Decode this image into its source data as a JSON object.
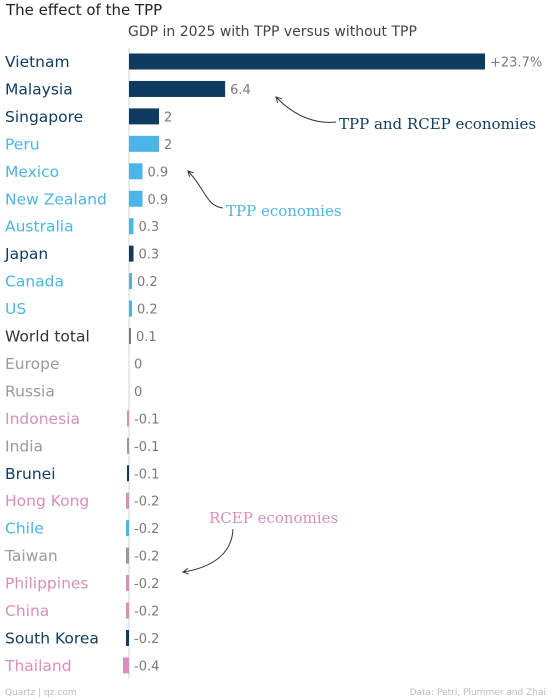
{
  "chart_data": {
    "type": "bar",
    "orientation": "horizontal",
    "title": "The effect of the TPP",
    "subtitle": "GDP in 2025 with TPP versus without TPP",
    "categories": [
      "Vietnam",
      "Malaysia",
      "Singapore",
      "Peru",
      "Mexico",
      "New Zealand",
      "Australia",
      "Japan",
      "Canada",
      "US",
      "World total",
      "Europe",
      "Russia",
      "Indonesia",
      "India",
      "Brunei",
      "Hong Kong",
      "Chile",
      "Taiwan",
      "Philippines",
      "China",
      "South Korea",
      "Thailand"
    ],
    "values": [
      23.7,
      6.4,
      2,
      2,
      0.9,
      0.9,
      0.3,
      0.3,
      0.2,
      0.2,
      0.1,
      0,
      0,
      -0.1,
      -0.1,
      -0.1,
      -0.2,
      -0.2,
      -0.2,
      -0.2,
      -0.2,
      -0.2,
      -0.4
    ],
    "value_labels": [
      "+23.7%",
      "6.4",
      "2",
      "2",
      "0.9",
      "0.9",
      "0.3",
      "0.3",
      "0.2",
      "0.2",
      "0.1",
      "0",
      "0",
      "-0.1",
      "-0.1",
      "-0.1",
      "-0.2",
      "-0.2",
      "-0.2",
      "-0.2",
      "-0.2",
      "-0.2",
      "-0.4"
    ],
    "groups": [
      "both",
      "both",
      "both",
      "tpp",
      "tpp",
      "tpp",
      "tpp",
      "both",
      "tpp",
      "tpp",
      "world",
      "other",
      "other",
      "rcep",
      "other",
      "both",
      "rcep",
      "tpp",
      "other",
      "rcep",
      "rcep",
      "both",
      "rcep"
    ],
    "colors": {
      "both": "#0f3b5f",
      "tpp": "#4ab5e6",
      "rcep": "#d98fbb",
      "world": "#333333",
      "other": "#9a9a9a",
      "bar_world": "#7a7a7a",
      "bar_other": "#9a9a9a"
    },
    "annotations": [
      {
        "text": "TPP and RCEP economies",
        "group": "both"
      },
      {
        "text": "TPP economies",
        "group": "tpp"
      },
      {
        "text": "RCEP economies",
        "group": "rcep"
      }
    ],
    "xlim": [
      -0.4,
      23.7
    ],
    "grid": false,
    "legend": "none"
  },
  "footer": {
    "source_left": "Quartz | qz.com",
    "source_right": "Data: Petri, Plummer and Zhai"
  }
}
